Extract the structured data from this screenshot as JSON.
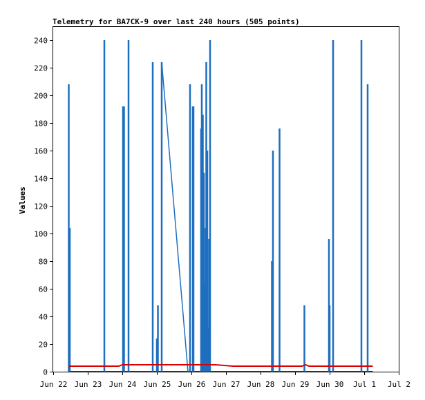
{
  "chart_data": {
    "type": "line",
    "title": "Telemetry for BA7CK-9 over last 240 hours (505 points)",
    "ylabel": "Values",
    "xlabel": "",
    "ylim": [
      0,
      250
    ],
    "y_ticks": [
      0,
      20,
      40,
      60,
      80,
      100,
      120,
      140,
      160,
      180,
      200,
      220,
      240
    ],
    "x_ticks": [
      {
        "label": "Jun 22",
        "day": 22.0
      },
      {
        "label": "Jun 23",
        "day": 23.0
      },
      {
        "label": "Jun 24",
        "day": 24.0
      },
      {
        "label": "Jun 25",
        "day": 25.0
      },
      {
        "label": "Jun 26",
        "day": 26.0
      },
      {
        "label": "Jun 27",
        "day": 27.0
      },
      {
        "label": "Jun 28",
        "day": 28.0
      },
      {
        "label": "Jun 29",
        "day": 29.0
      },
      {
        "label": "Jun 30",
        "day": 30.0
      },
      {
        "label": "Jul 1",
        "day": 31.0
      },
      {
        "label": "Jul 2",
        "day": 32.0
      }
    ],
    "xlim": [
      22.0,
      32.0
    ],
    "grid": false,
    "colors": {
      "series1": "#1f6fbf",
      "series2": "#dd0000",
      "series3": "#000000"
    },
    "series": [
      {
        "color": "#1f6fbf",
        "spikes": [
          {
            "x": 22.45,
            "y": 208
          },
          {
            "x": 22.48,
            "y": 104
          },
          {
            "x": 23.48,
            "y": 240
          },
          {
            "x": 24.02,
            "y": 192
          },
          {
            "x": 24.05,
            "y": 192
          },
          {
            "x": 24.18,
            "y": 240
          },
          {
            "x": 24.88,
            "y": 224
          },
          {
            "x": 25.0,
            "y": 24
          },
          {
            "x": 25.03,
            "y": 48
          },
          {
            "x": 25.14,
            "y": 224
          },
          {
            "x": 25.96,
            "y": 208
          },
          {
            "x": 26.04,
            "y": 192
          },
          {
            "x": 26.06,
            "y": 192
          },
          {
            "x": 26.28,
            "y": 176
          },
          {
            "x": 26.3,
            "y": 208
          },
          {
            "x": 26.33,
            "y": 186
          },
          {
            "x": 26.36,
            "y": 144
          },
          {
            "x": 26.38,
            "y": 64
          },
          {
            "x": 26.41,
            "y": 104
          },
          {
            "x": 26.43,
            "y": 224
          },
          {
            "x": 26.46,
            "y": 160
          },
          {
            "x": 26.48,
            "y": 32
          },
          {
            "x": 26.51,
            "y": 96
          },
          {
            "x": 26.54,
            "y": 240
          },
          {
            "x": 28.33,
            "y": 80
          },
          {
            "x": 28.36,
            "y": 160
          },
          {
            "x": 28.55,
            "y": 176
          },
          {
            "x": 29.27,
            "y": 48
          },
          {
            "x": 29.98,
            "y": 96
          },
          {
            "x": 30.0,
            "y": 48
          },
          {
            "x": 30.1,
            "y": 240
          },
          {
            "x": 30.92,
            "y": 240
          },
          {
            "x": 31.1,
            "y": 208
          }
        ],
        "ramp": [
          {
            "x": 25.14,
            "y": 224
          },
          {
            "x": 25.9,
            "y": 0
          }
        ]
      },
      {
        "color": "#dd0000",
        "points": [
          {
            "x": 22.45,
            "y": 4
          },
          {
            "x": 23.9,
            "y": 4
          },
          {
            "x": 24.0,
            "y": 5
          },
          {
            "x": 25.1,
            "y": 5
          },
          {
            "x": 26.7,
            "y": 5
          },
          {
            "x": 27.2,
            "y": 4
          },
          {
            "x": 29.2,
            "y": 4
          },
          {
            "x": 29.3,
            "y": 5
          },
          {
            "x": 29.4,
            "y": 4
          },
          {
            "x": 31.25,
            "y": 4
          }
        ]
      },
      {
        "color": "#000000",
        "points": [
          {
            "x": 22.45,
            "y": 0
          },
          {
            "x": 31.25,
            "y": 0
          }
        ]
      }
    ]
  }
}
